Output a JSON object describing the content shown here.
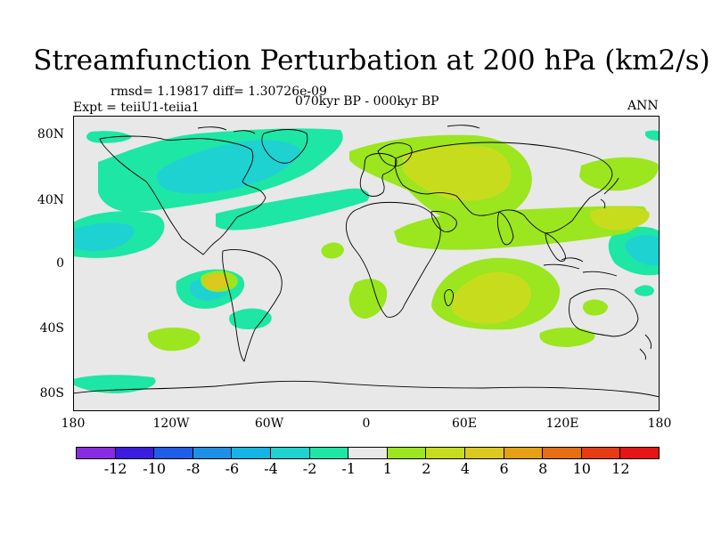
{
  "title": "Streamfunction Perturbation at 200 hPa (km2/s)",
  "stats": "rmsd= 1.19817 diff= 1.30726e-09",
  "experiment": "Expt = teiiU1-teiia1",
  "period": "070kyr BP - 000kyr BP",
  "season": "ANN",
  "map": {
    "projection": "cylindrical equidistant",
    "lon_range": [
      -180,
      180
    ],
    "lat_range": [
      -90,
      90
    ],
    "ocean_color": "#e8e8e8",
    "coastline_color": "#000000",
    "lat_labels": [
      "80N",
      "40N",
      "0",
      "40S",
      "80S"
    ],
    "lon_labels": [
      "180",
      "120W",
      "60W",
      "0",
      "60E",
      "120E",
      "180"
    ]
  },
  "colorbar": {
    "labels": [
      "-12",
      "-10",
      "-8",
      "-6",
      "-4",
      "-2",
      "-1",
      "1",
      "2",
      "4",
      "6",
      "8",
      "10",
      "12"
    ],
    "colors": [
      "#8a2be2",
      "#3b1de0",
      "#1f5ee6",
      "#1e90e6",
      "#14b4e6",
      "#1ed2d2",
      "#1ee6a5",
      "#e8e8e8",
      "#9be61e",
      "#c8dc1e",
      "#dcc81e",
      "#e6a014",
      "#e66e14",
      "#e63c14",
      "#e61414"
    ]
  }
}
